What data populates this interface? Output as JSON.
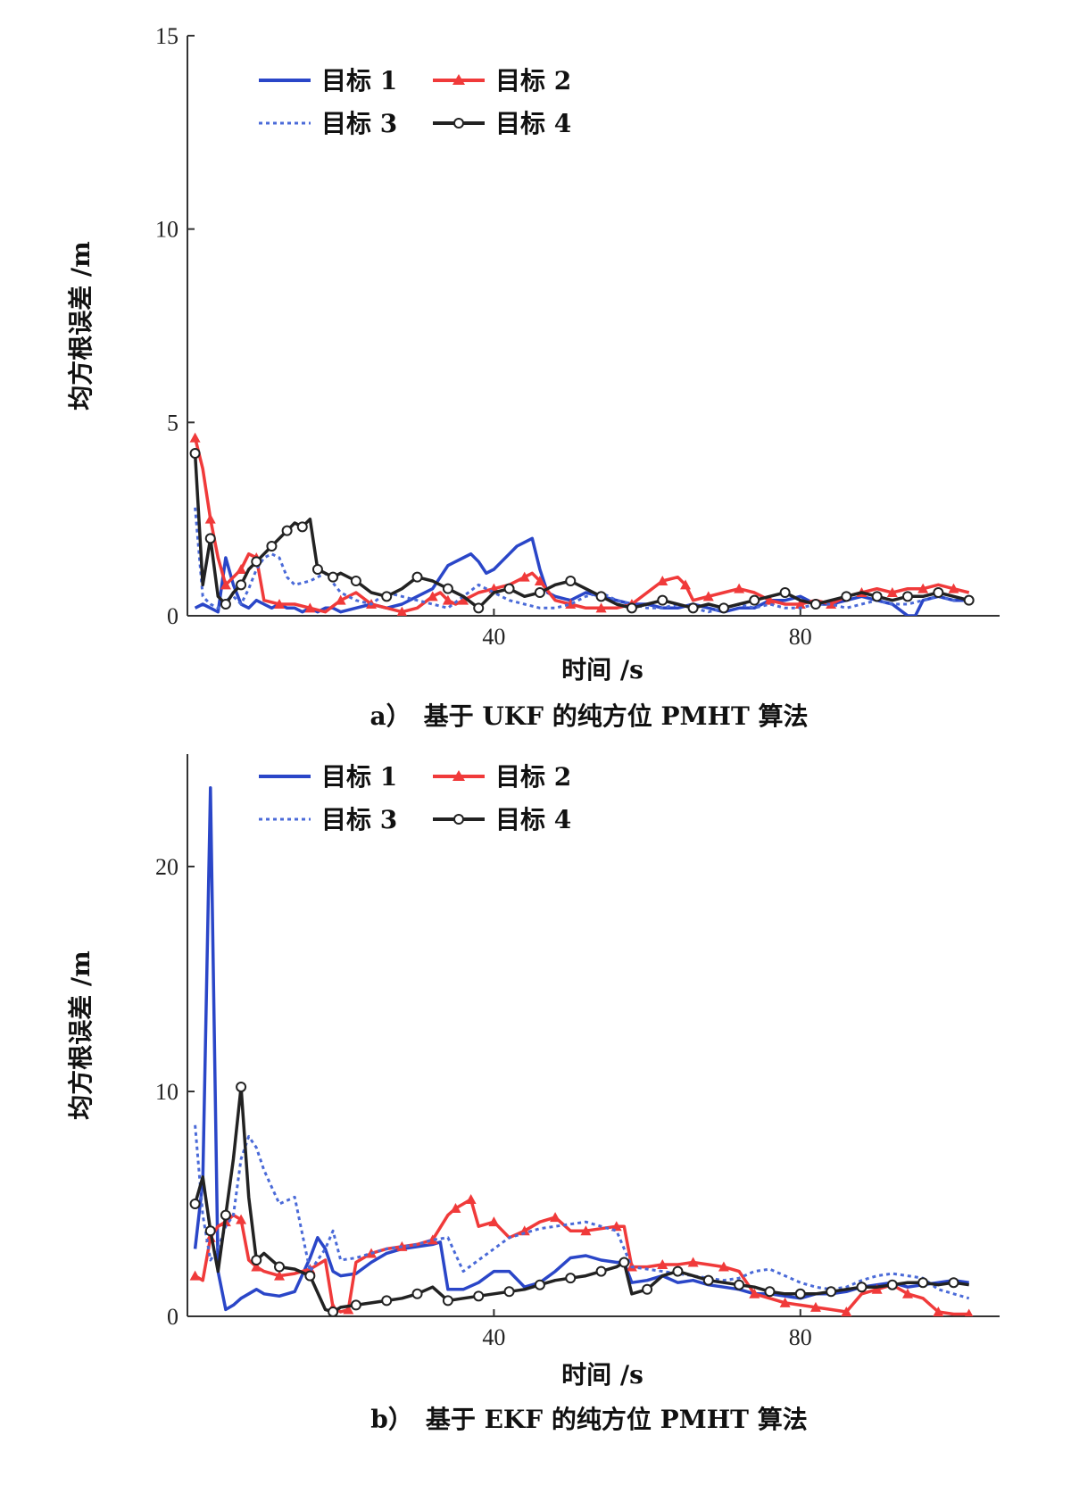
{
  "chart_data": [
    {
      "type": "line",
      "caption": "a）　基于 UKF 的纯方位 PMHT 算法",
      "xlabel": "时间 /s",
      "ylabel": "均方根误差 /m",
      "xlim": [
        0,
        106
      ],
      "ylim": [
        0,
        15
      ],
      "xticks": [
        40,
        80
      ],
      "yticks": [
        0,
        5,
        10,
        15
      ],
      "legend_position": "top-left",
      "series": [
        {
          "name": "目标 1",
          "color": "#2a46c8",
          "style": "solid",
          "marker": "none",
          "x": [
            1,
            2,
            3,
            4,
            5,
            6,
            7,
            8,
            9,
            10,
            11,
            12,
            13,
            14,
            15,
            16,
            17,
            18,
            19,
            20,
            22,
            24,
            26,
            28,
            30,
            32,
            33,
            34,
            35,
            36,
            37,
            38,
            39,
            40,
            41,
            42,
            43,
            44,
            45,
            46,
            47,
            48,
            50,
            52,
            54,
            56,
            58,
            60,
            62,
            64,
            66,
            68,
            70,
            72,
            74,
            76,
            78,
            80,
            82,
            84,
            86,
            88,
            90,
            92,
            94,
            95,
            96,
            98,
            100,
            102
          ],
          "y": [
            0.2,
            0.3,
            0.2,
            0.1,
            1.5,
            0.8,
            0.3,
            0.2,
            0.4,
            0.3,
            0.2,
            0.3,
            0.2,
            0.2,
            0.1,
            0.2,
            0.1,
            0.2,
            0.2,
            0.1,
            0.2,
            0.3,
            0.2,
            0.3,
            0.5,
            0.7,
            1.0,
            1.3,
            1.4,
            1.5,
            1.6,
            1.4,
            1.1,
            1.2,
            1.4,
            1.6,
            1.8,
            1.9,
            2.0,
            1.2,
            0.6,
            0.5,
            0.4,
            0.6,
            0.5,
            0.4,
            0.3,
            0.3,
            0.2,
            0.2,
            0.3,
            0.2,
            0.1,
            0.2,
            0.2,
            0.4,
            0.4,
            0.5,
            0.3,
            0.3,
            0.4,
            0.5,
            0.4,
            0.3,
            0.0,
            0.0,
            0.4,
            0.5,
            0.4,
            0.4
          ]
        },
        {
          "name": "目标 2",
          "color": "#f03a3a",
          "style": "solid",
          "marker": "triangle",
          "x": [
            1,
            2,
            3,
            4,
            5,
            6,
            7,
            8,
            9,
            10,
            12,
            14,
            16,
            18,
            20,
            22,
            24,
            26,
            28,
            30,
            32,
            33,
            34,
            35,
            36,
            38,
            40,
            42,
            44,
            45,
            46,
            48,
            50,
            52,
            54,
            56,
            58,
            60,
            62,
            64,
            65,
            66,
            68,
            70,
            72,
            74,
            76,
            78,
            80,
            82,
            84,
            86,
            88,
            90,
            92,
            94,
            96,
            98,
            100,
            102
          ],
          "y": [
            4.6,
            3.8,
            2.5,
            1.5,
            0.8,
            1.0,
            1.2,
            1.6,
            1.5,
            0.4,
            0.3,
            0.3,
            0.2,
            0.1,
            0.4,
            0.6,
            0.3,
            0.2,
            0.1,
            0.2,
            0.5,
            0.6,
            0.4,
            0.3,
            0.4,
            0.6,
            0.7,
            0.8,
            1.0,
            1.1,
            0.9,
            0.4,
            0.3,
            0.2,
            0.2,
            0.2,
            0.3,
            0.6,
            0.9,
            1.0,
            0.8,
            0.4,
            0.5,
            0.6,
            0.7,
            0.6,
            0.4,
            0.3,
            0.3,
            0.4,
            0.3,
            0.5,
            0.6,
            0.7,
            0.6,
            0.7,
            0.7,
            0.8,
            0.7,
            0.6
          ]
        },
        {
          "name": "目标 3",
          "color": "#4a6ad8",
          "style": "dotted",
          "marker": "none",
          "x": [
            1,
            2,
            3,
            4,
            5,
            6,
            7,
            8,
            9,
            10,
            11,
            12,
            13,
            14,
            16,
            18,
            20,
            22,
            24,
            26,
            28,
            30,
            32,
            34,
            36,
            38,
            40,
            42,
            44,
            46,
            48,
            50,
            52,
            54,
            56,
            58,
            60,
            62,
            64,
            66,
            68,
            70,
            72,
            74,
            76,
            78,
            80,
            82,
            84,
            86,
            88,
            90,
            92,
            94,
            96,
            98,
            100,
            102
          ],
          "y": [
            2.8,
            0.5,
            0.3,
            0.2,
            0.4,
            0.5,
            0.3,
            0.7,
            1.2,
            1.5,
            1.6,
            1.5,
            1.0,
            0.8,
            0.9,
            1.1,
            0.6,
            0.4,
            0.3,
            0.6,
            0.5,
            0.4,
            0.3,
            0.2,
            0.5,
            0.8,
            0.6,
            0.4,
            0.3,
            0.2,
            0.2,
            0.3,
            0.5,
            0.6,
            0.4,
            0.3,
            0.2,
            0.2,
            0.3,
            0.2,
            0.1,
            0.2,
            0.3,
            0.2,
            0.3,
            0.2,
            0.2,
            0.3,
            0.3,
            0.2,
            0.3,
            0.4,
            0.3,
            0.3,
            0.4,
            0.5,
            0.4,
            0.5
          ]
        },
        {
          "name": "目标 4",
          "color": "#222222",
          "style": "solid",
          "marker": "circle",
          "x": [
            1,
            2,
            3,
            4,
            5,
            6,
            7,
            8,
            9,
            10,
            11,
            12,
            13,
            14,
            15,
            16,
            17,
            18,
            19,
            20,
            22,
            24,
            26,
            28,
            30,
            32,
            34,
            36,
            38,
            40,
            42,
            44,
            46,
            48,
            50,
            52,
            54,
            56,
            58,
            60,
            62,
            64,
            66,
            68,
            70,
            72,
            74,
            76,
            78,
            80,
            82,
            84,
            86,
            88,
            90,
            92,
            94,
            96,
            98,
            100,
            102
          ],
          "y": [
            4.2,
            0.8,
            2.0,
            0.5,
            0.3,
            0.6,
            0.8,
            1.2,
            1.4,
            1.6,
            1.8,
            2.0,
            2.2,
            2.4,
            2.3,
            2.5,
            1.2,
            1.1,
            1.0,
            1.1,
            0.9,
            0.6,
            0.5,
            0.7,
            1.0,
            0.9,
            0.7,
            0.5,
            0.2,
            0.6,
            0.7,
            0.5,
            0.6,
            0.8,
            0.9,
            0.7,
            0.5,
            0.3,
            0.2,
            0.3,
            0.4,
            0.3,
            0.2,
            0.3,
            0.2,
            0.3,
            0.4,
            0.5,
            0.6,
            0.4,
            0.3,
            0.4,
            0.5,
            0.6,
            0.5,
            0.4,
            0.5,
            0.5,
            0.6,
            0.5,
            0.4
          ]
        }
      ]
    },
    {
      "type": "line",
      "caption": "b）　基于 EKF 的纯方位 PMHT 算法",
      "xlabel": "时间 /s",
      "ylabel": "均方根误差 /m",
      "xlim": [
        0,
        106
      ],
      "ylim": [
        0,
        25
      ],
      "xticks": [
        40,
        80
      ],
      "yticks": [
        0,
        10,
        20
      ],
      "legend_position": "top-left",
      "series": [
        {
          "name": "目标 1",
          "color": "#2a46c8",
          "style": "solid",
          "marker": "none",
          "x": [
            1,
            2,
            3,
            4,
            5,
            6,
            7,
            8,
            9,
            10,
            12,
            14,
            16,
            17,
            18,
            19,
            20,
            22,
            24,
            26,
            28,
            30,
            32,
            33,
            34,
            36,
            38,
            40,
            42,
            44,
            46,
            48,
            50,
            52,
            54,
            56,
            57,
            58,
            60,
            62,
            64,
            66,
            68,
            70,
            72,
            74,
            76,
            78,
            80,
            82,
            84,
            86,
            88,
            90,
            92,
            94,
            96,
            98,
            100,
            102
          ],
          "y": [
            3.0,
            6.0,
            23.5,
            2.0,
            0.3,
            0.5,
            0.8,
            1.0,
            1.2,
            1.0,
            0.9,
            1.1,
            2.6,
            3.5,
            3.0,
            2.0,
            1.8,
            1.9,
            2.4,
            2.8,
            3.0,
            3.1,
            3.2,
            3.3,
            1.2,
            1.2,
            1.5,
            2.0,
            2.0,
            1.3,
            1.5,
            2.0,
            2.6,
            2.7,
            2.5,
            2.4,
            2.4,
            1.5,
            1.6,
            1.8,
            1.5,
            1.6,
            1.4,
            1.3,
            1.2,
            1.0,
            1.0,
            0.9,
            0.8,
            1.0,
            1.0,
            1.1,
            1.3,
            1.4,
            1.5,
            1.3,
            1.4,
            1.5,
            1.6,
            1.5
          ]
        },
        {
          "name": "目标 2",
          "color": "#f03a3a",
          "style": "solid",
          "marker": "triangle",
          "x": [
            1,
            2,
            3,
            4,
            5,
            6,
            7,
            8,
            9,
            10,
            12,
            14,
            16,
            18,
            19,
            20,
            21,
            22,
            24,
            26,
            28,
            30,
            32,
            34,
            35,
            36,
            37,
            38,
            40,
            42,
            44,
            46,
            48,
            50,
            52,
            54,
            56,
            57,
            58,
            60,
            62,
            64,
            66,
            68,
            70,
            72,
            74,
            76,
            78,
            80,
            82,
            84,
            86,
            88,
            90,
            92,
            94,
            96,
            98,
            100,
            102
          ],
          "y": [
            1.8,
            1.6,
            3.5,
            4.0,
            4.2,
            4.5,
            4.3,
            2.5,
            2.2,
            2.0,
            1.8,
            1.9,
            2.1,
            2.5,
            0.4,
            0.2,
            0.3,
            2.4,
            2.8,
            3.0,
            3.1,
            3.2,
            3.4,
            4.5,
            4.8,
            5.0,
            5.2,
            4.0,
            4.2,
            3.5,
            3.8,
            4.2,
            4.4,
            3.8,
            3.8,
            3.9,
            4.0,
            4.0,
            2.2,
            2.2,
            2.3,
            2.3,
            2.4,
            2.3,
            2.2,
            2.0,
            1.0,
            0.8,
            0.6,
            0.5,
            0.4,
            0.3,
            0.2,
            1.0,
            1.2,
            1.4,
            1.0,
            0.8,
            0.2,
            0.1,
            0.1
          ]
        },
        {
          "name": "目标 3",
          "color": "#4a6ad8",
          "style": "dotted",
          "marker": "none",
          "x": [
            1,
            2,
            3,
            4,
            5,
            6,
            7,
            8,
            9,
            10,
            12,
            14,
            16,
            18,
            19,
            20,
            22,
            24,
            26,
            28,
            30,
            32,
            34,
            36,
            38,
            40,
            42,
            44,
            46,
            48,
            50,
            52,
            54,
            56,
            58,
            60,
            62,
            64,
            66,
            68,
            70,
            72,
            74,
            76,
            78,
            80,
            82,
            84,
            86,
            88,
            90,
            92,
            94,
            96,
            98,
            100,
            102
          ],
          "y": [
            8.5,
            4.5,
            2.5,
            3.0,
            4.0,
            4.5,
            7.0,
            8.0,
            7.5,
            6.5,
            5.0,
            5.3,
            2.0,
            3.0,
            3.8,
            2.5,
            2.6,
            2.8,
            3.0,
            3.1,
            3.2,
            3.4,
            3.5,
            2.0,
            2.5,
            3.0,
            3.5,
            3.7,
            3.9,
            4.0,
            4.1,
            4.2,
            4.0,
            3.8,
            2.2,
            2.1,
            2.0,
            1.9,
            1.8,
            1.7,
            1.6,
            1.7,
            2.0,
            2.1,
            1.8,
            1.5,
            1.3,
            1.2,
            1.3,
            1.6,
            1.8,
            1.9,
            1.8,
            1.7,
            1.2,
            1.0,
            0.8
          ]
        },
        {
          "name": "目标 4",
          "color": "#222222",
          "style": "solid",
          "marker": "circle",
          "x": [
            1,
            2,
            3,
            4,
            5,
            6,
            7,
            8,
            9,
            10,
            12,
            14,
            16,
            18,
            19,
            20,
            22,
            24,
            26,
            28,
            30,
            32,
            34,
            36,
            38,
            40,
            42,
            44,
            46,
            48,
            50,
            52,
            54,
            56,
            57,
            58,
            60,
            62,
            64,
            66,
            68,
            70,
            72,
            74,
            76,
            78,
            80,
            82,
            84,
            86,
            88,
            90,
            92,
            94,
            96,
            98,
            100,
            102
          ],
          "y": [
            5.0,
            6.2,
            3.8,
            2.0,
            4.5,
            7.0,
            10.2,
            5.3,
            2.5,
            2.8,
            2.2,
            2.1,
            1.8,
            0.3,
            0.2,
            0.4,
            0.5,
            0.6,
            0.7,
            0.8,
            1.0,
            1.3,
            0.7,
            0.8,
            0.9,
            1.0,
            1.1,
            1.2,
            1.4,
            1.6,
            1.7,
            1.8,
            2.0,
            2.2,
            2.4,
            1.0,
            1.2,
            1.8,
            2.0,
            1.8,
            1.6,
            1.5,
            1.4,
            1.3,
            1.1,
            1.0,
            1.0,
            1.0,
            1.1,
            1.2,
            1.3,
            1.3,
            1.4,
            1.5,
            1.5,
            1.4,
            1.5,
            1.4
          ]
        }
      ]
    }
  ]
}
